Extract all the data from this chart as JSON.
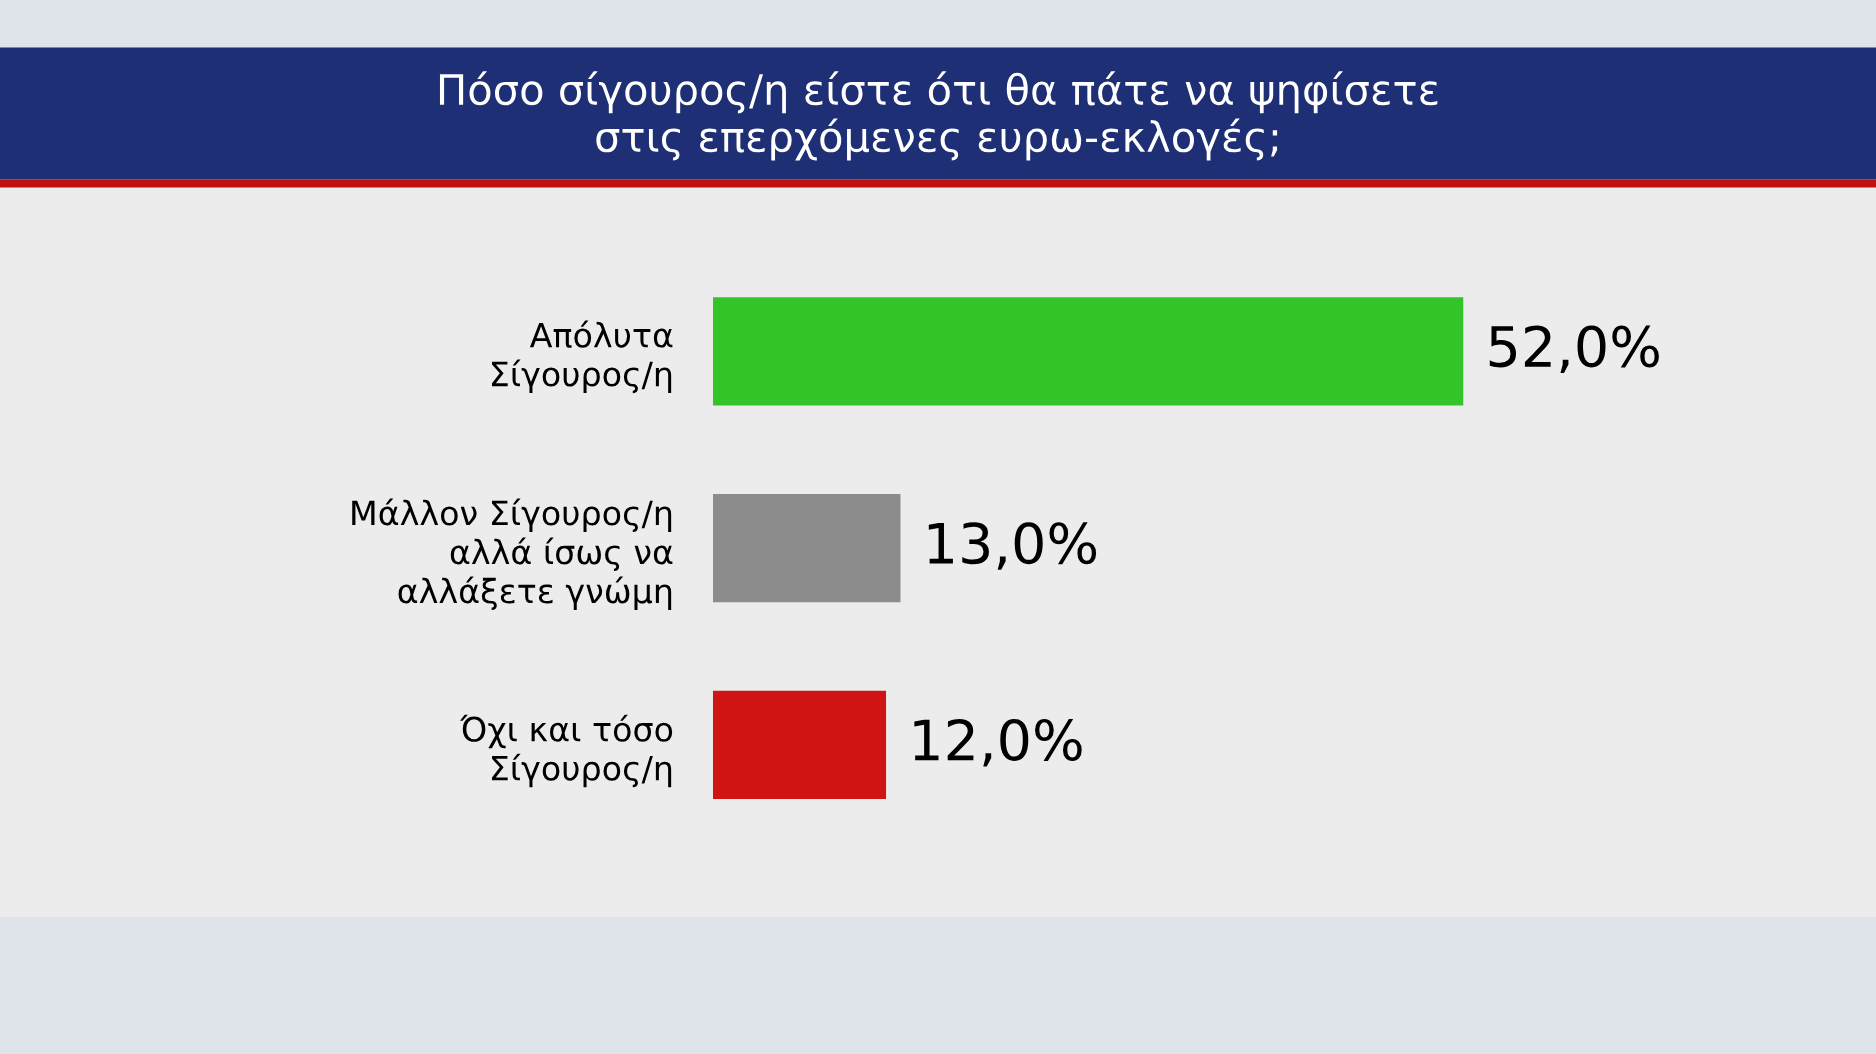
{
  "chart_data": {
    "type": "bar",
    "orientation": "horizontal",
    "title": "Πόσο σίγουρος/η είστε ότι θα πάτε να ψηφίσετε\nστις επερχόμενες ευρω-εκλογές;",
    "categories": [
      "Απόλυτα\nΣίγουρος/η",
      "Μάλλον Σίγουρος/η\nαλλά ίσως να\nαλλάξετε γνώμη",
      "Όχι και τόσο\nΣίγουρος/η"
    ],
    "values": [
      52.0,
      13.0,
      12.0
    ],
    "colors": [
      "#33c42a",
      "#8c8c8c",
      "#d01414"
    ],
    "value_labels": [
      "52,0%",
      "13,0%",
      "12,0%"
    ],
    "tick_labels": "y",
    "grid": false,
    "legend": false
  }
}
